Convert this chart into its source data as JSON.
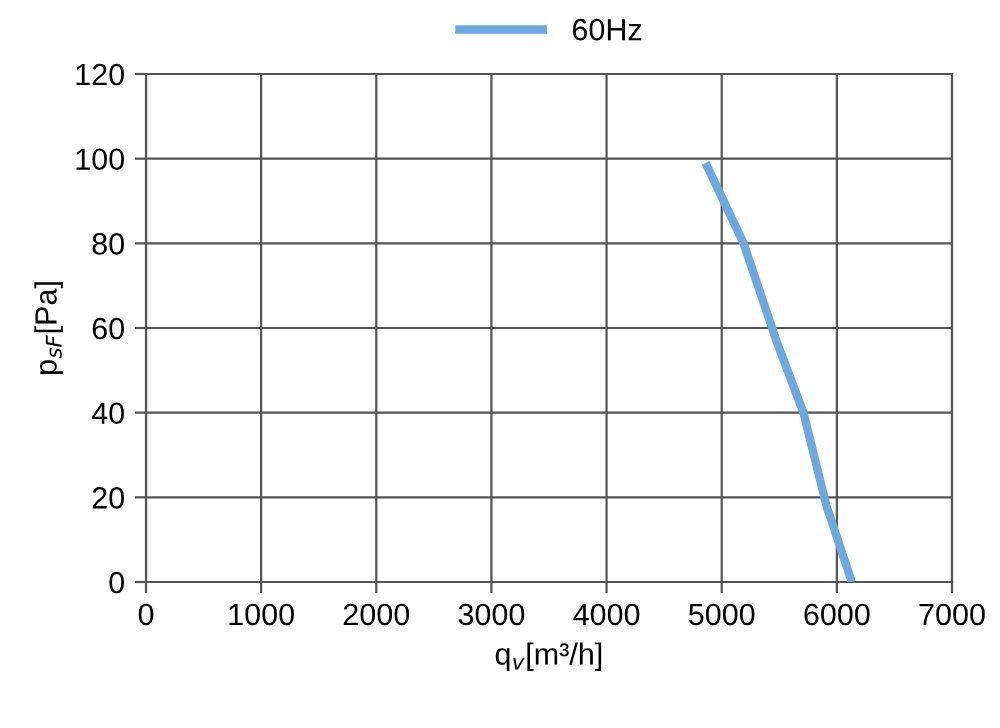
{
  "chart_data": {
    "type": "line",
    "xlabel": "q$_{v}$[m³/h]",
    "ylabel": "p$_{sF}$[Pa]",
    "series": [
      {
        "name": "60Hz",
        "color": "#6fa8dc",
        "x": [
          4860,
          5190,
          5475,
          5710,
          5910,
          6130
        ],
        "values": [
          99,
          80,
          57,
          40,
          18,
          0
        ]
      }
    ],
    "xlim": [
      0,
      7000
    ],
    "xticks": [
      0,
      1000,
      2000,
      3000,
      4000,
      5000,
      6000,
      7000
    ],
    "ylim": [
      0,
      120
    ],
    "yticks": [
      0,
      20,
      40,
      60,
      80,
      100,
      120
    ],
    "grid": true,
    "legend": "top",
    "marker": "none",
    "line_style": "solid"
  }
}
